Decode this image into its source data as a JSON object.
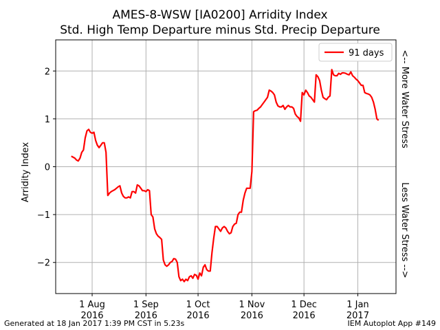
{
  "chart_data": {
    "type": "line",
    "title": "AMES-8-WSW [IA0200]  Arridity Index",
    "subtitle": "Std. High Temp Departure minus Std. Precip Departure",
    "ylabel": "Arridity Index",
    "right_label_top": "<-- More Water Stress",
    "right_label_bottom": "Less Water Stress -->",
    "xlim": [
      "2016-07-11",
      "2017-01-23"
    ],
    "ylim": [
      -2.65,
      2.65
    ],
    "grid": true,
    "legend_position": "top-right",
    "x_ticks": [
      {
        "date": "2016-08-01",
        "line1": "1 Aug",
        "line2": "2016"
      },
      {
        "date": "2016-09-01",
        "line1": "1 Sep",
        "line2": "2016"
      },
      {
        "date": "2016-10-01",
        "line1": "1 Oct",
        "line2": "2016"
      },
      {
        "date": "2016-11-01",
        "line1": "1 Nov",
        "line2": "2016"
      },
      {
        "date": "2016-12-01",
        "line1": "1 Dec",
        "line2": "2016"
      },
      {
        "date": "2017-01-01",
        "line1": "1 Jan",
        "line2": "2017"
      }
    ],
    "y_ticks": [
      {
        "value": -2,
        "label": "−2"
      },
      {
        "value": -1,
        "label": "−1"
      },
      {
        "value": 0,
        "label": "0"
      },
      {
        "value": 1,
        "label": "1"
      },
      {
        "value": 2,
        "label": "2"
      }
    ],
    "series": [
      {
        "name": "91 days",
        "color": "#ff0000",
        "points": [
          [
            "2016-07-20",
            0.22
          ],
          [
            "2016-07-21",
            0.2
          ],
          [
            "2016-07-22",
            0.18
          ],
          [
            "2016-07-23",
            0.14
          ],
          [
            "2016-07-24",
            0.12
          ],
          [
            "2016-07-25",
            0.18
          ],
          [
            "2016-07-26",
            0.3
          ],
          [
            "2016-07-27",
            0.35
          ],
          [
            "2016-07-28",
            0.6
          ],
          [
            "2016-07-29",
            0.75
          ],
          [
            "2016-07-30",
            0.78
          ],
          [
            "2016-07-31",
            0.72
          ],
          [
            "2016-08-01",
            0.7
          ],
          [
            "2016-08-02",
            0.72
          ],
          [
            "2016-08-03",
            0.55
          ],
          [
            "2016-08-04",
            0.45
          ],
          [
            "2016-08-05",
            0.4
          ],
          [
            "2016-08-06",
            0.45
          ],
          [
            "2016-08-07",
            0.5
          ],
          [
            "2016-08-08",
            0.5
          ],
          [
            "2016-08-09",
            0.3
          ],
          [
            "2016-08-10",
            -0.6
          ],
          [
            "2016-08-11",
            -0.55
          ],
          [
            "2016-08-12",
            -0.52
          ],
          [
            "2016-08-13",
            -0.5
          ],
          [
            "2016-08-14",
            -0.48
          ],
          [
            "2016-08-15",
            -0.45
          ],
          [
            "2016-08-16",
            -0.42
          ],
          [
            "2016-08-17",
            -0.4
          ],
          [
            "2016-08-18",
            -0.55
          ],
          [
            "2016-08-19",
            -0.62
          ],
          [
            "2016-08-20",
            -0.65
          ],
          [
            "2016-08-21",
            -0.65
          ],
          [
            "2016-08-22",
            -0.63
          ],
          [
            "2016-08-23",
            -0.65
          ],
          [
            "2016-08-24",
            -0.52
          ],
          [
            "2016-08-25",
            -0.52
          ],
          [
            "2016-08-26",
            -0.55
          ],
          [
            "2016-08-27",
            -0.38
          ],
          [
            "2016-08-28",
            -0.4
          ],
          [
            "2016-08-29",
            -0.45
          ],
          [
            "2016-08-30",
            -0.5
          ],
          [
            "2016-08-31",
            -0.5
          ],
          [
            "2016-09-01",
            -0.52
          ],
          [
            "2016-09-02",
            -0.48
          ],
          [
            "2016-09-03",
            -0.5
          ],
          [
            "2016-09-04",
            -1.0
          ],
          [
            "2016-09-05",
            -1.05
          ],
          [
            "2016-09-06",
            -1.3
          ],
          [
            "2016-09-07",
            -1.4
          ],
          [
            "2016-09-08",
            -1.45
          ],
          [
            "2016-09-09",
            -1.48
          ],
          [
            "2016-09-10",
            -1.52
          ],
          [
            "2016-09-11",
            -1.95
          ],
          [
            "2016-09-12",
            -2.05
          ],
          [
            "2016-09-13",
            -2.08
          ],
          [
            "2016-09-14",
            -2.05
          ],
          [
            "2016-09-15",
            -2.0
          ],
          [
            "2016-09-16",
            -1.98
          ],
          [
            "2016-09-17",
            -1.92
          ],
          [
            "2016-09-18",
            -1.93
          ],
          [
            "2016-09-19",
            -2.0
          ],
          [
            "2016-09-20",
            -2.3
          ],
          [
            "2016-09-21",
            -2.38
          ],
          [
            "2016-09-22",
            -2.35
          ],
          [
            "2016-09-23",
            -2.4
          ],
          [
            "2016-09-24",
            -2.35
          ],
          [
            "2016-09-25",
            -2.38
          ],
          [
            "2016-09-26",
            -2.3
          ],
          [
            "2016-09-27",
            -2.28
          ],
          [
            "2016-09-28",
            -2.33
          ],
          [
            "2016-09-29",
            -2.25
          ],
          [
            "2016-09-30",
            -2.27
          ],
          [
            "2016-10-01",
            -2.35
          ],
          [
            "2016-10-02",
            -2.22
          ],
          [
            "2016-10-03",
            -2.28
          ],
          [
            "2016-10-04",
            -2.1
          ],
          [
            "2016-10-05",
            -2.05
          ],
          [
            "2016-10-06",
            -2.15
          ],
          [
            "2016-10-07",
            -2.18
          ],
          [
            "2016-10-08",
            -2.18
          ],
          [
            "2016-10-09",
            -1.8
          ],
          [
            "2016-10-10",
            -1.5
          ],
          [
            "2016-10-11",
            -1.25
          ],
          [
            "2016-10-12",
            -1.25
          ],
          [
            "2016-10-13",
            -1.3
          ],
          [
            "2016-10-14",
            -1.35
          ],
          [
            "2016-10-15",
            -1.28
          ],
          [
            "2016-10-16",
            -1.25
          ],
          [
            "2016-10-17",
            -1.28
          ],
          [
            "2016-10-18",
            -1.35
          ],
          [
            "2016-10-19",
            -1.4
          ],
          [
            "2016-10-20",
            -1.38
          ],
          [
            "2016-10-21",
            -1.25
          ],
          [
            "2016-10-22",
            -1.2
          ],
          [
            "2016-10-23",
            -1.18
          ],
          [
            "2016-10-24",
            -1.0
          ],
          [
            "2016-10-25",
            -0.95
          ],
          [
            "2016-10-26",
            -0.95
          ],
          [
            "2016-10-27",
            -0.7
          ],
          [
            "2016-10-28",
            -0.55
          ],
          [
            "2016-10-29",
            -0.45
          ],
          [
            "2016-10-30",
            -0.45
          ],
          [
            "2016-10-31",
            -0.45
          ],
          [
            "2016-11-01",
            -0.1
          ],
          [
            "2016-11-02",
            1.15
          ],
          [
            "2016-11-03",
            1.17
          ],
          [
            "2016-11-04",
            1.18
          ],
          [
            "2016-11-05",
            1.22
          ],
          [
            "2016-11-06",
            1.25
          ],
          [
            "2016-11-07",
            1.3
          ],
          [
            "2016-11-08",
            1.35
          ],
          [
            "2016-11-09",
            1.4
          ],
          [
            "2016-11-10",
            1.45
          ],
          [
            "2016-11-11",
            1.6
          ],
          [
            "2016-11-12",
            1.58
          ],
          [
            "2016-11-13",
            1.55
          ],
          [
            "2016-11-14",
            1.5
          ],
          [
            "2016-11-15",
            1.35
          ],
          [
            "2016-11-16",
            1.27
          ],
          [
            "2016-11-17",
            1.25
          ],
          [
            "2016-11-18",
            1.25
          ],
          [
            "2016-11-19",
            1.28
          ],
          [
            "2016-11-20",
            1.2
          ],
          [
            "2016-11-21",
            1.25
          ],
          [
            "2016-11-22",
            1.28
          ],
          [
            "2016-11-23",
            1.25
          ],
          [
            "2016-11-24",
            1.25
          ],
          [
            "2016-11-25",
            1.22
          ],
          [
            "2016-11-26",
            1.1
          ],
          [
            "2016-11-27",
            1.05
          ],
          [
            "2016-11-28",
            1.02
          ],
          [
            "2016-11-29",
            0.95
          ],
          [
            "2016-11-30",
            1.55
          ],
          [
            "2016-12-01",
            1.5
          ],
          [
            "2016-12-02",
            1.6
          ],
          [
            "2016-12-03",
            1.55
          ],
          [
            "2016-12-04",
            1.48
          ],
          [
            "2016-12-05",
            1.45
          ],
          [
            "2016-12-06",
            1.4
          ],
          [
            "2016-12-07",
            1.35
          ],
          [
            "2016-12-08",
            1.92
          ],
          [
            "2016-12-09",
            1.88
          ],
          [
            "2016-12-10",
            1.8
          ],
          [
            "2016-12-11",
            1.6
          ],
          [
            "2016-12-12",
            1.45
          ],
          [
            "2016-12-13",
            1.42
          ],
          [
            "2016-12-14",
            1.4
          ],
          [
            "2016-12-15",
            1.45
          ],
          [
            "2016-12-16",
            1.48
          ],
          [
            "2016-12-17",
            2.03
          ],
          [
            "2016-12-18",
            1.92
          ],
          [
            "2016-12-19",
            1.9
          ],
          [
            "2016-12-20",
            1.9
          ],
          [
            "2016-12-21",
            1.95
          ],
          [
            "2016-12-22",
            1.93
          ],
          [
            "2016-12-23",
            1.96
          ],
          [
            "2016-12-24",
            1.96
          ],
          [
            "2016-12-25",
            1.95
          ],
          [
            "2016-12-26",
            1.93
          ],
          [
            "2016-12-27",
            1.92
          ],
          [
            "2016-12-28",
            1.98
          ],
          [
            "2016-12-29",
            1.9
          ],
          [
            "2016-12-30",
            1.87
          ],
          [
            "2016-12-31",
            1.83
          ],
          [
            "2017-01-01",
            1.8
          ],
          [
            "2017-01-02",
            1.75
          ],
          [
            "2017-01-03",
            1.7
          ],
          [
            "2017-01-04",
            1.7
          ],
          [
            "2017-01-05",
            1.55
          ],
          [
            "2017-01-06",
            1.53
          ],
          [
            "2017-01-07",
            1.52
          ],
          [
            "2017-01-08",
            1.5
          ],
          [
            "2017-01-09",
            1.45
          ],
          [
            "2017-01-10",
            1.35
          ],
          [
            "2017-01-11",
            1.2
          ],
          [
            "2017-01-12",
            1.0
          ],
          [
            "2017-01-13",
            0.97
          ]
        ]
      }
    ]
  },
  "footer": {
    "generated": "Generated at 18 Jan 2017 1:39 PM CST in 5.23s",
    "app": "IEM Autoplot App #149"
  }
}
